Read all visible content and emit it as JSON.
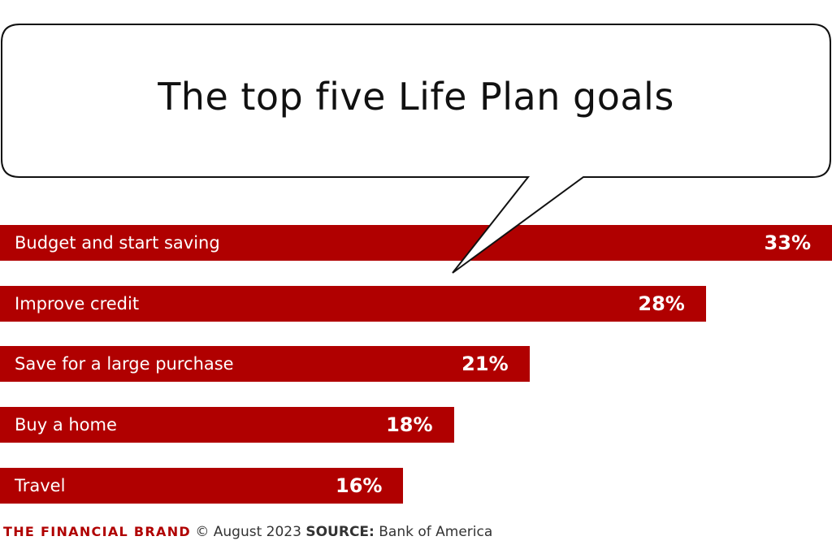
{
  "chart_data": {
    "type": "bar",
    "orientation": "horizontal",
    "title": "The top five Life Plan goals",
    "categories": [
      "Budget and start saving",
      "Improve credit",
      "Save for a large purchase",
      "Buy a home",
      "Travel"
    ],
    "values": [
      33,
      28,
      21,
      18,
      16
    ],
    "value_labels": [
      "33%",
      "28%",
      "21%",
      "18%",
      "16%"
    ],
    "unit": "%",
    "xlim": [
      0,
      33
    ],
    "grid": false,
    "legend": "none",
    "bar_color": "#b00000"
  },
  "footer": {
    "brand": "THE FINANCIAL BRAND",
    "copyright": "© August 2023",
    "source_label": "SOURCE:",
    "source_value": "Bank of America"
  }
}
